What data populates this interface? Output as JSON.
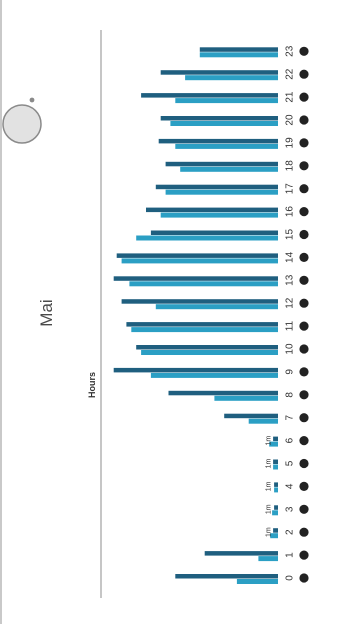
{
  "header": {
    "month": "Mai"
  },
  "chart_data": {
    "type": "bar",
    "orientation": "horizontal",
    "title": "",
    "axis_title": "Hours",
    "categories": [
      "0",
      "1",
      "2",
      "3",
      "4",
      "5",
      "6",
      "7",
      "8",
      "9",
      "10",
      "11",
      "12",
      "13",
      "14",
      "15",
      "16",
      "17",
      "18",
      "19",
      "20",
      "21",
      "22",
      "23"
    ],
    "series": [
      {
        "values": [
          105,
          75,
          5,
          4,
          4,
          5,
          5,
          55,
          112,
          168,
          145,
          155,
          160,
          168,
          165,
          130,
          135,
          125,
          115,
          122,
          120,
          140,
          120,
          80
        ]
      },
      {
        "values": [
          42,
          20,
          8,
          6,
          4,
          5,
          9,
          30,
          65,
          130,
          140,
          150,
          125,
          152,
          160,
          145,
          120,
          115,
          100,
          105,
          110,
          105,
          95,
          80
        ]
      }
    ],
    "colors": [
      "#1f5f7f",
      "#2b9fc4"
    ],
    "grid": false,
    "xlim": [
      0,
      180
    ],
    "small_value_labels": [
      "1m",
      "1m",
      "1m",
      "1m",
      "1m"
    ]
  }
}
